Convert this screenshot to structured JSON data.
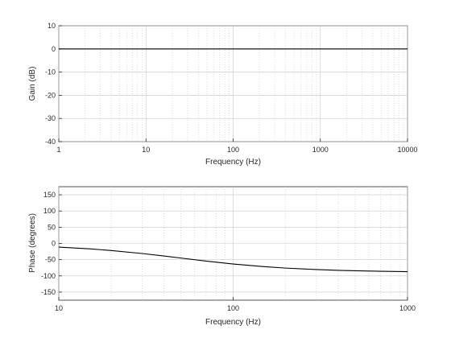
{
  "chart_data": [
    {
      "type": "line",
      "title": "",
      "xlabel": "Frequency (Hz)",
      "ylabel": "Gain (dB)",
      "xscale": "log",
      "xlim": [
        1,
        10000
      ],
      "ylim": [
        -40,
        10
      ],
      "xticks": [
        1,
        10,
        100,
        1000,
        10000
      ],
      "xtick_labels": [
        "1",
        "10",
        "100",
        "1000",
        "10000"
      ],
      "yticks": [
        -40,
        -30,
        -20,
        -10,
        0,
        10
      ],
      "ytick_labels": [
        "-40",
        "-30",
        "-20",
        "-10",
        "0",
        "10"
      ],
      "grid": "on",
      "series": [
        {
          "color": "#000000",
          "x": [
            1,
            10,
            100,
            1000,
            10000
          ],
          "y": [
            0,
            0,
            0,
            0,
            0
          ]
        }
      ]
    },
    {
      "type": "line",
      "title": "",
      "xlabel": "Frequency (Hz)",
      "ylabel": "Phase (degrees)",
      "xscale": "log",
      "xlim": [
        10,
        1000
      ],
      "ylim": [
        -175,
        175
      ],
      "xticks": [
        10,
        100,
        1000
      ],
      "xtick_labels": [
        "10",
        "100",
        "1000"
      ],
      "yticks": [
        -150,
        -100,
        -50,
        0,
        50,
        100,
        150
      ],
      "ytick_labels": [
        "-150",
        "-100",
        "-50",
        "0",
        "50",
        "100",
        "150"
      ],
      "grid": "on",
      "series": [
        {
          "color": "#000000",
          "x": [
            10,
            15,
            20,
            30,
            40,
            50,
            70,
            100,
            150,
            200,
            300,
            400,
            500,
            700,
            1000
          ],
          "y": [
            -11.3,
            -16.7,
            -21.8,
            -31.0,
            -38.7,
            -45.0,
            -54.5,
            -63.4,
            -71.6,
            -76.0,
            -80.5,
            -82.9,
            -84.3,
            -85.9,
            -87.1
          ]
        }
      ]
    }
  ]
}
